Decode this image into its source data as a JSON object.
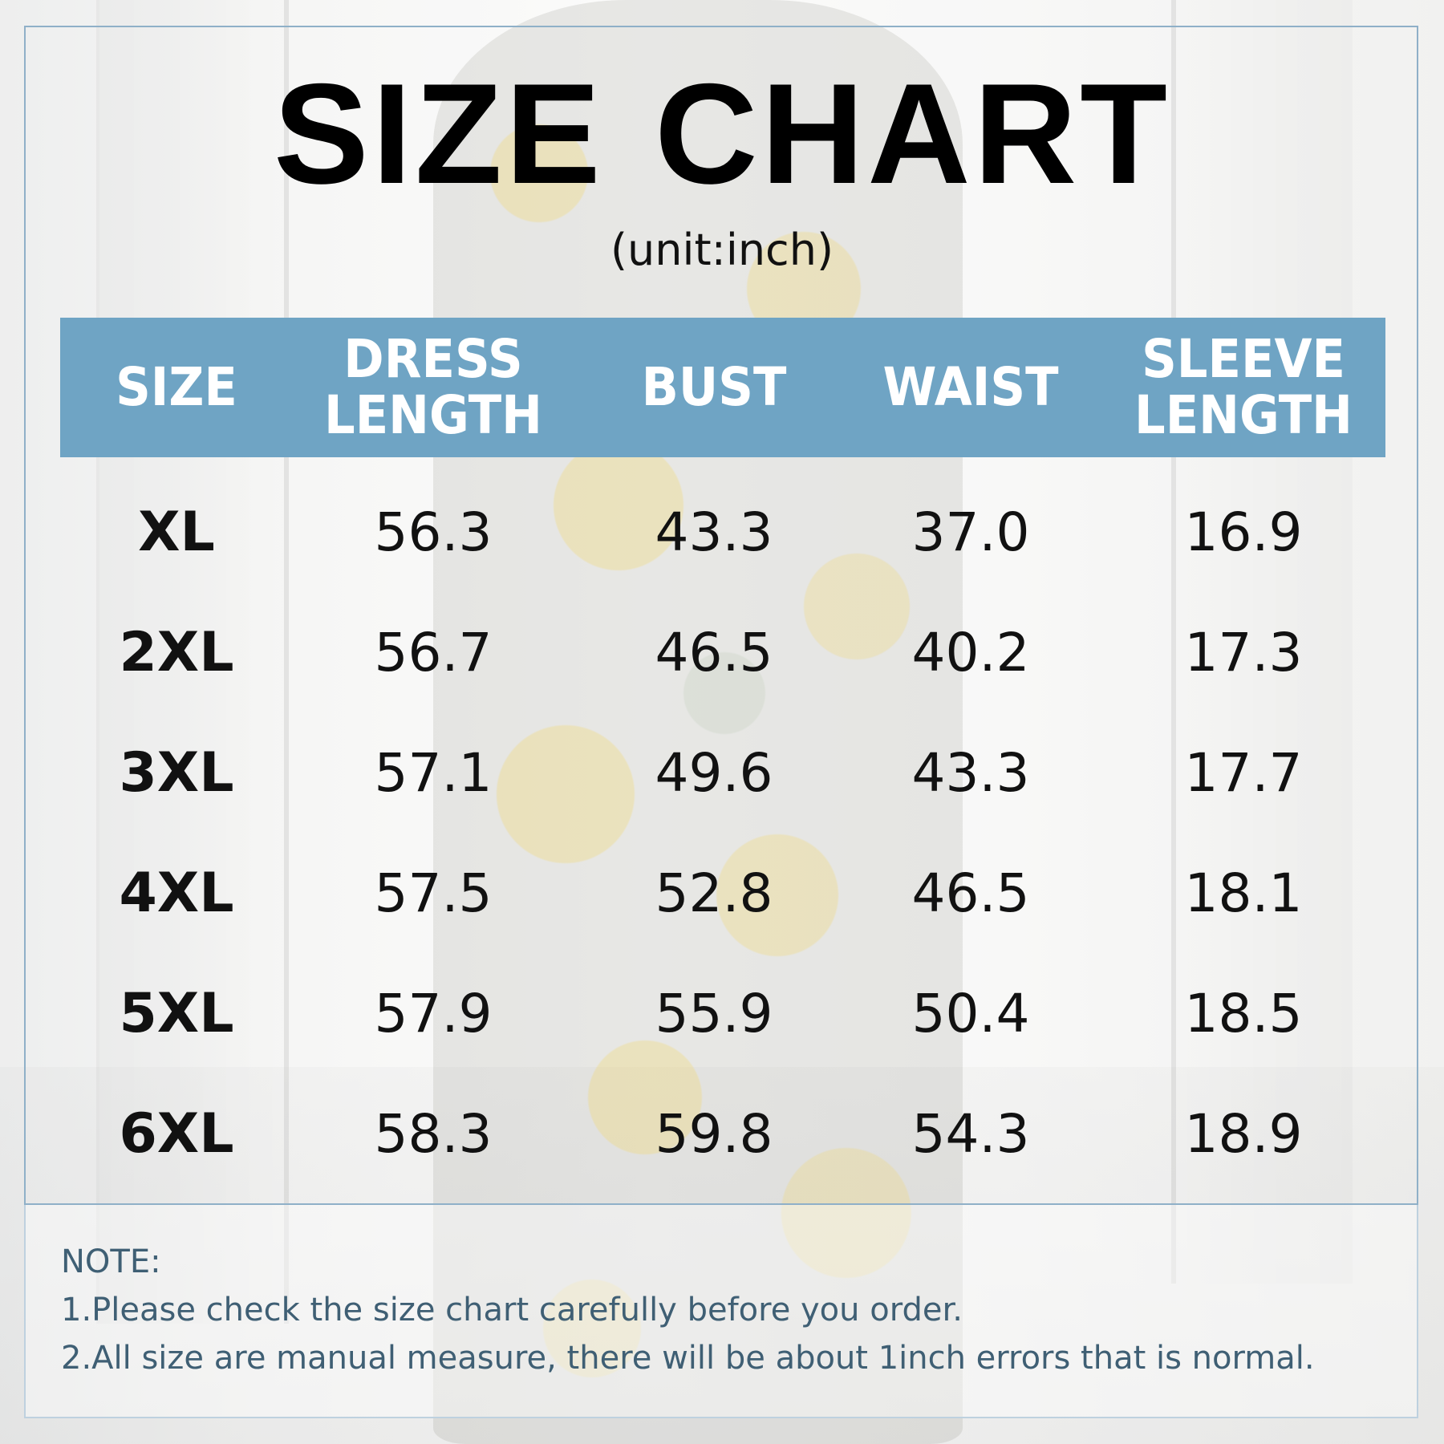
{
  "title": "SIZE CHART",
  "unit": "(unit:inch)",
  "table": {
    "headers": [
      {
        "line1": "SIZE",
        "line2": ""
      },
      {
        "line1": "DRESS",
        "line2": "LENGTH"
      },
      {
        "line1": "BUST",
        "line2": ""
      },
      {
        "line1": "WAIST",
        "line2": ""
      },
      {
        "line1": "SLEEVE",
        "line2": "LENGTH"
      }
    ],
    "rows": [
      [
        "XL",
        "56.3",
        "43.3",
        "37.0",
        "16.9"
      ],
      [
        "2XL",
        "56.7",
        "46.5",
        "40.2",
        "17.3"
      ],
      [
        "3XL",
        "57.1",
        "49.6",
        "43.3",
        "17.7"
      ],
      [
        "4XL",
        "57.5",
        "52.8",
        "46.5",
        "18.1"
      ],
      [
        "5XL",
        "57.9",
        "55.9",
        "50.4",
        "18.5"
      ],
      [
        "6XL",
        "58.3",
        "59.8",
        "54.3",
        "18.9"
      ]
    ]
  },
  "note": {
    "heading": "NOTE:",
    "lines": [
      "1.Please check the size chart carefully before you order.",
      "2.All size are manual measure, there will be about 1inch errors that is normal."
    ]
  },
  "colors": {
    "header_bg": "#6fa4c4",
    "frame": "#8fb0c8",
    "note_text": "#3f5f74"
  }
}
